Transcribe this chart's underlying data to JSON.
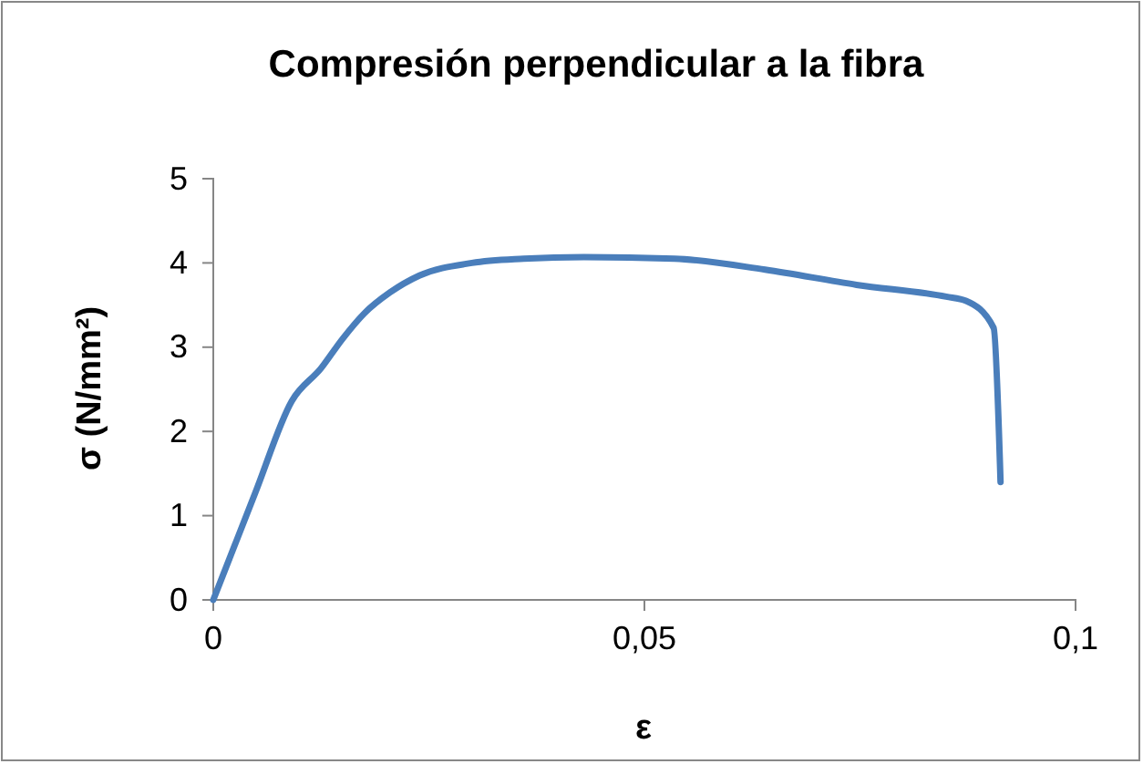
{
  "chart_data": {
    "type": "line",
    "title": "Compresión perpendicular a la fibra",
    "xlabel": "ε",
    "ylabel": "σ (N/mm²)",
    "xlim": [
      0,
      0.1
    ],
    "xticks": [
      0,
      {
        "value": 0.05,
        "label": "0,05"
      },
      {
        "value": 0.1,
        "label": "0,1"
      }
    ],
    "ylim": [
      0,
      5
    ],
    "yticks": [
      0,
      1,
      2,
      3,
      4,
      5
    ],
    "line_style": "solid",
    "series": [
      {
        "color": "#4a7ebb",
        "x": [
          0,
          0.0049,
          0.0091,
          0.0125,
          0.015,
          0.0175,
          0.0205,
          0.0239,
          0.03,
          0.036,
          0.043,
          0.0535,
          0.064,
          0.0746,
          0.085,
          0.0873,
          0.0905,
          0.0913
        ],
        "values": [
          0,
          1.28,
          2.36,
          2.75,
          3.1,
          3.4,
          3.65,
          3.85,
          4.0,
          4.05,
          4.07,
          4.05,
          3.92,
          3.74,
          3.6,
          3.55,
          3.23,
          1.4
        ]
      }
    ]
  }
}
